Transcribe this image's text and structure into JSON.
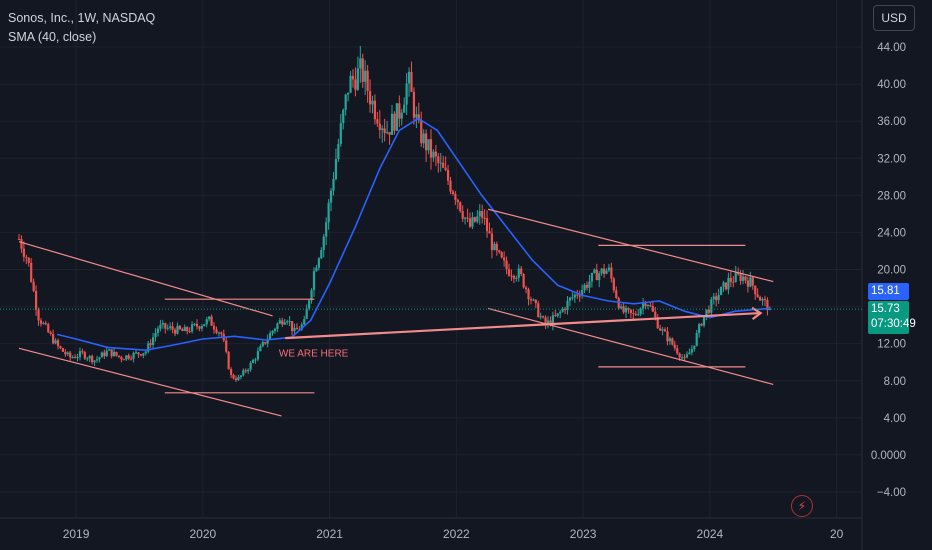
{
  "legend": {
    "title": "Sonos, Inc., 1W, NASDAQ",
    "indicator": "SMA (40, close)"
  },
  "currency": "USD",
  "price_tags": {
    "sma": "15.81",
    "last": "15.73",
    "countdown": "07:30:49"
  },
  "annotation": "WE ARE HERE",
  "icons": {
    "alert": "lightning-icon"
  },
  "colors": {
    "background": "#131722",
    "up": "#26a69a",
    "down": "#ef5350",
    "sma": "#2962ff",
    "trendline": "#f28b8b",
    "last_price": "#089981"
  },
  "chart_data": {
    "type": "candlestick",
    "title": "Sonos, Inc., 1W, NASDAQ",
    "ylim": [
      -4.0,
      44.0
    ],
    "y_ticks": [
      "44.00",
      "40.00",
      "36.00",
      "32.00",
      "28.00",
      "24.00",
      "20.00",
      "16.00",
      "12.00",
      "8.00",
      "4.00",
      "0.0000",
      "−4.00"
    ],
    "x_ticks": [
      "2019",
      "2020",
      "2021",
      "2022",
      "2023",
      "2024",
      "20"
    ],
    "x_tick_dates": [
      2019.0,
      2020.0,
      2021.0,
      2022.0,
      2023.0,
      2024.0,
      2025.0
    ],
    "xlim": [
      2018.4,
      2025.2
    ],
    "last_price": 15.73,
    "sma_last": 15.81,
    "price_path": [
      [
        2018.55,
        23.3
      ],
      [
        2018.62,
        21.0
      ],
      [
        2018.7,
        15.0
      ],
      [
        2018.78,
        13.2
      ],
      [
        2018.86,
        11.6
      ],
      [
        2018.95,
        10.5
      ],
      [
        2019.05,
        10.9
      ],
      [
        2019.15,
        10.2
      ],
      [
        2019.25,
        11.2
      ],
      [
        2019.35,
        10.5
      ],
      [
        2019.45,
        10.8
      ],
      [
        2019.55,
        11.2
      ],
      [
        2019.65,
        13.8
      ],
      [
        2019.75,
        13.6
      ],
      [
        2019.85,
        13.3
      ],
      [
        2019.95,
        13.9
      ],
      [
        2020.05,
        14.5
      ],
      [
        2020.15,
        13.0
      ],
      [
        2020.22,
        8.5
      ],
      [
        2020.28,
        8.2
      ],
      [
        2020.38,
        9.8
      ],
      [
        2020.48,
        12.0
      ],
      [
        2020.58,
        14.0
      ],
      [
        2020.66,
        15.0
      ],
      [
        2020.72,
        13.2
      ],
      [
        2020.8,
        14.2
      ],
      [
        2020.88,
        20.0
      ],
      [
        2020.96,
        24.0
      ],
      [
        2021.05,
        32.0
      ],
      [
        2021.15,
        40.0
      ],
      [
        2021.25,
        41.5
      ],
      [
        2021.35,
        37.5
      ],
      [
        2021.45,
        35.0
      ],
      [
        2021.55,
        37.0
      ],
      [
        2021.62,
        40.5
      ],
      [
        2021.7,
        35.0
      ],
      [
        2021.8,
        32.5
      ],
      [
        2021.9,
        30.5
      ],
      [
        2022.0,
        28.0
      ],
      [
        2022.1,
        24.5
      ],
      [
        2022.2,
        26.0
      ],
      [
        2022.3,
        22.0
      ],
      [
        2022.4,
        20.0
      ],
      [
        2022.5,
        19.5
      ],
      [
        2022.6,
        16.5
      ],
      [
        2022.7,
        14.0
      ],
      [
        2022.8,
        15.0
      ],
      [
        2022.9,
        16.8
      ],
      [
        2023.0,
        18.0
      ],
      [
        2023.1,
        19.5
      ],
      [
        2023.2,
        20.0
      ],
      [
        2023.3,
        15.5
      ],
      [
        2023.4,
        15.0
      ],
      [
        2023.5,
        16.8
      ],
      [
        2023.6,
        13.8
      ],
      [
        2023.7,
        12.0
      ],
      [
        2023.8,
        10.2
      ],
      [
        2023.86,
        11.5
      ],
      [
        2023.95,
        15.0
      ],
      [
        2024.05,
        17.0
      ],
      [
        2024.15,
        18.8
      ],
      [
        2024.25,
        19.3
      ],
      [
        2024.33,
        18.5
      ],
      [
        2024.4,
        16.8
      ],
      [
        2024.48,
        15.73
      ]
    ],
    "sma_path": [
      [
        2018.85,
        13.0
      ],
      [
        2019.0,
        12.5
      ],
      [
        2019.25,
        11.6
      ],
      [
        2019.55,
        11.3
      ],
      [
        2019.75,
        11.8
      ],
      [
        2020.0,
        12.5
      ],
      [
        2020.25,
        12.8
      ],
      [
        2020.5,
        12.4
      ],
      [
        2020.7,
        12.7
      ],
      [
        2020.85,
        14.5
      ],
      [
        2021.0,
        18.5
      ],
      [
        2021.2,
        24.5
      ],
      [
        2021.4,
        31.0
      ],
      [
        2021.55,
        35.0
      ],
      [
        2021.7,
        36.3
      ],
      [
        2021.85,
        35.0
      ],
      [
        2022.0,
        32.0
      ],
      [
        2022.2,
        28.0
      ],
      [
        2022.4,
        24.5
      ],
      [
        2022.6,
        21.0
      ],
      [
        2022.8,
        18.3
      ],
      [
        2023.0,
        17.2
      ],
      [
        2023.2,
        16.6
      ],
      [
        2023.4,
        16.3
      ],
      [
        2023.6,
        16.6
      ],
      [
        2023.8,
        15.5
      ],
      [
        2024.0,
        14.8
      ],
      [
        2024.2,
        15.5
      ],
      [
        2024.48,
        15.81
      ]
    ],
    "trendlines": [
      {
        "from": [
          2018.55,
          23.0
        ],
        "to": [
          2020.55,
          15.0
        ]
      },
      {
        "from": [
          2018.55,
          11.5
        ],
        "to": [
          2020.62,
          4.2
        ]
      },
      {
        "from": [
          2019.7,
          16.8
        ],
        "to": [
          2020.88,
          16.8
        ]
      },
      {
        "from": [
          2019.7,
          6.7
        ],
        "to": [
          2020.88,
          6.7
        ]
      },
      {
        "from": [
          2022.25,
          26.5
        ],
        "to": [
          2024.5,
          18.7
        ]
      },
      {
        "from": [
          2022.25,
          15.8
        ],
        "to": [
          2024.5,
          7.6
        ]
      },
      {
        "from": [
          2023.12,
          22.6
        ],
        "to": [
          2024.28,
          22.6
        ]
      },
      {
        "from": [
          2023.12,
          9.5
        ],
        "to": [
          2024.28,
          9.5
        ]
      }
    ],
    "arrow": {
      "from": [
        2020.65,
        12.6
      ],
      "to": [
        2024.4,
        15.3
      ]
    },
    "annotation_at": [
      2020.6,
      10.6
    ]
  }
}
